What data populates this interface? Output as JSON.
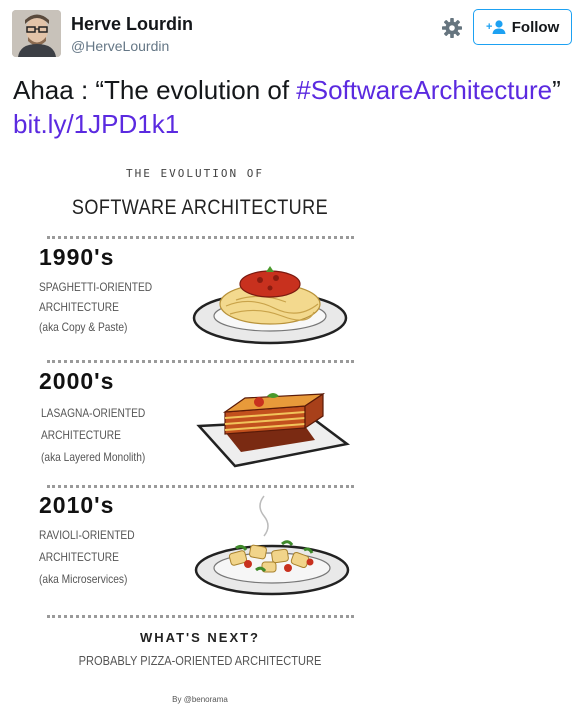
{
  "user": {
    "display_name": "Herve Lourdin",
    "handle": "@HerveLourdin"
  },
  "actions": {
    "follow_label": "Follow"
  },
  "tweet": {
    "text_prefix": "Ahaa : “The evolution of ",
    "hashtag": "#SoftwareArchitecture",
    "text_after": "” ",
    "link": "bit.ly/1JPD1k1"
  },
  "infographic": {
    "kicker": "THE EVOLUTION OF",
    "title": "SOFTWARE ARCHITECTURE",
    "eras": [
      {
        "decade": "1990's",
        "line1": "SPAGHETTI-ORIENTED",
        "line2": "ARCHITECTURE",
        "line3": "(aka Copy & Paste)"
      },
      {
        "decade": "2000's",
        "line1": "LASAGNA-ORIENTED",
        "line2": "ARCHITECTURE",
        "line3": "(aka Layered Monolith)"
      },
      {
        "decade": "2010's",
        "line1": "RAVIOLI-ORIENTED",
        "line2": "ARCHITECTURE",
        "line3": "(aka Microservices)"
      }
    ],
    "next_title": "WHAT'S NEXT?",
    "next_sub": "PROBABLY PIZZA-ORIENTED ARCHITECTURE",
    "credit": "By @benorama"
  },
  "icons": {
    "settings": "gear-icon",
    "follow": "add-user-icon"
  },
  "colors": {
    "link": "#5b2ae0",
    "follow_border": "#1da1f2"
  }
}
